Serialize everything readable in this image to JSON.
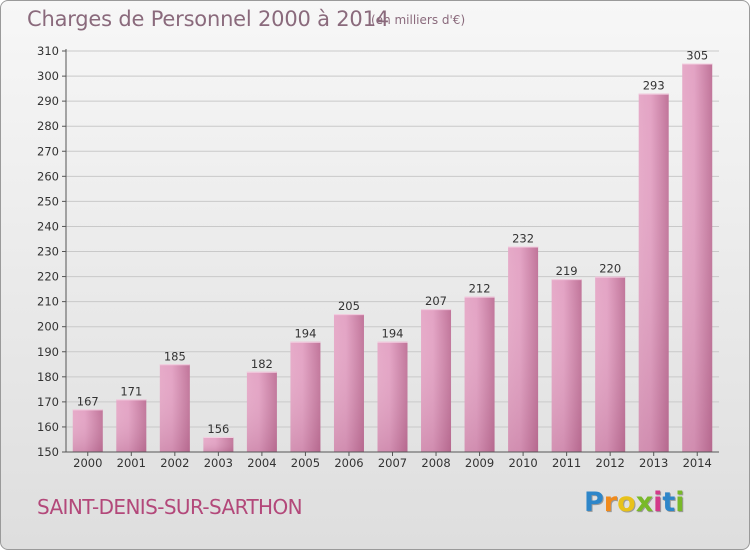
{
  "title": "Charges de Personnel 2000 à 2014",
  "subtitle": "(en milliers d'€)",
  "commune": "SAINT-DENIS-SUR-SARTHON",
  "logo": {
    "letters": [
      "P",
      "r",
      "o",
      "x",
      "i",
      "t",
      "i"
    ],
    "colors": [
      "#2e86c9",
      "#f08a1c",
      "#e8c21a",
      "#79b929",
      "#d33a8a",
      "#2e86c9",
      "#79b929"
    ]
  },
  "colors": {
    "bar_light": "#e8aecb",
    "bar_dark": "#b4628c",
    "text": "#333333",
    "accent": "#b3487a"
  },
  "chart_data": {
    "type": "bar",
    "categories": [
      "2000",
      "2001",
      "2002",
      "2003",
      "2004",
      "2005",
      "2006",
      "2007",
      "2008",
      "2009",
      "2010",
      "2011",
      "2012",
      "2013",
      "2014"
    ],
    "values": [
      167,
      171,
      185,
      156,
      182,
      194,
      205,
      194,
      207,
      212,
      232,
      219,
      220,
      293,
      305
    ],
    "data_labels": [
      "167",
      "171",
      "185",
      "156",
      "182",
      "194",
      "205",
      "194",
      "207",
      "212",
      "232",
      "219",
      "220",
      "293",
      "305"
    ],
    "yticks": [
      "150",
      "160",
      "170",
      "180",
      "190",
      "200",
      "210",
      "220",
      "230",
      "240",
      "250",
      "260",
      "270",
      "280",
      "290",
      "300",
      "310"
    ],
    "ylim": [
      150,
      310
    ],
    "grid": true,
    "title": "Charges de Personnel 2000 à 2014",
    "xlabel": "",
    "ylabel": ""
  }
}
